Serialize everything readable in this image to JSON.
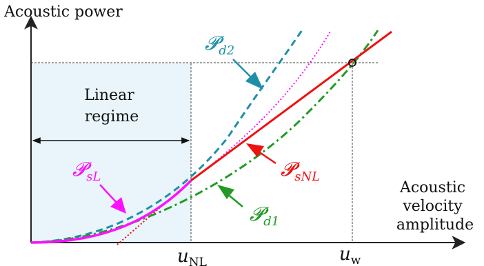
{
  "axes": {
    "y_label": "Acoustic power",
    "x_label_lines": [
      "Acoustic",
      "velocity",
      "amplitude"
    ],
    "x_ticks": [
      {
        "id": "u_nl",
        "base": "u",
        "sub": "NL"
      },
      {
        "id": "u_w",
        "base": "u",
        "sub": "w"
      }
    ]
  },
  "regions": {
    "linear_regime_lines": [
      "Linear",
      "regime"
    ]
  },
  "curves": [
    {
      "id": "P_d2",
      "symbol": "𝓟",
      "sub": "d2",
      "style": "dashed",
      "color": "#1f8fa8"
    },
    {
      "id": "P_sL",
      "symbol": "𝓟",
      "sub": "sL",
      "style": "solid",
      "color": "#ff10ff"
    },
    {
      "id": "P_sNL",
      "symbol": "𝓟",
      "sub": "sNL",
      "style": "solid",
      "color": "#ee1111"
    },
    {
      "id": "P_d1",
      "symbol": "𝓟",
      "sub": "d1",
      "style": "dash-dot",
      "color": "#239a23"
    }
  ],
  "colors": {
    "axis": "#222222",
    "linear_region_fill": "#e9f5fb",
    "guide_lines": "#444444",
    "extension_dotted": "#ff10ff",
    "tangent_dotted": "#ee1111"
  }
}
